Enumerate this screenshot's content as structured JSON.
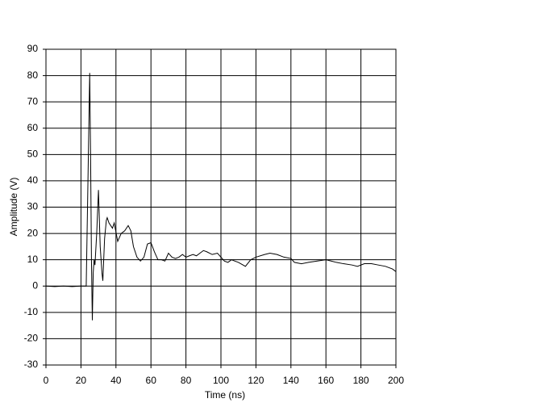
{
  "chart_data": {
    "type": "line",
    "x_label": "Time (ns)",
    "y_label": "Amplitude (V)",
    "x": [
      0,
      5,
      10,
      15,
      20,
      23,
      24,
      25,
      25.5,
      26,
      26.5,
      27,
      27.5,
      28,
      29,
      30,
      31,
      32,
      32.5,
      33.5,
      34.5,
      35,
      36,
      38,
      39,
      41,
      43,
      45,
      47,
      48.5,
      50,
      52,
      54,
      56,
      58,
      60,
      62,
      64,
      66,
      68,
      70,
      72,
      74,
      76,
      78,
      80,
      82,
      84,
      86,
      88,
      90,
      92,
      95,
      98,
      100,
      102,
      104,
      106,
      108,
      110,
      114,
      117,
      120,
      125,
      128,
      132,
      136,
      140,
      142,
      146,
      150,
      155,
      160,
      163,
      166,
      170,
      175,
      178,
      182,
      186,
      190,
      194,
      198,
      200
    ],
    "series": [
      {
        "color": "#000000",
        "values": [
          0,
          -0.2,
          0,
          -0.2,
          0,
          0,
          40,
          81,
          50,
          10,
          -13,
          5,
          10,
          8,
          20,
          36.5,
          15,
          5,
          2,
          18,
          25,
          26,
          24,
          22,
          24,
          17,
          20,
          21,
          23,
          21,
          15,
          11,
          9.5,
          11,
          16,
          16.5,
          13,
          10,
          10,
          9.5,
          12.5,
          11,
          10.5,
          11,
          12,
          11,
          11.5,
          12,
          11.5,
          12.5,
          13.5,
          13,
          12,
          12.5,
          11,
          9.5,
          9,
          10,
          9.5,
          9,
          7.5,
          10,
          11,
          12,
          12.5,
          12,
          11,
          10.5,
          9,
          8.5,
          9,
          9.5,
          10,
          9.5,
          9,
          8.5,
          8,
          7.5,
          8.5,
          8.5,
          8,
          7.5,
          6.5,
          5.5
        ]
      }
    ],
    "xlim": [
      0,
      200
    ],
    "xticks": [
      0,
      20,
      40,
      60,
      80,
      100,
      120,
      140,
      160,
      180,
      200
    ],
    "ylim": [
      -30,
      90
    ],
    "yticks": [
      -30,
      -20,
      -10,
      0,
      10,
      20,
      30,
      40,
      50,
      60,
      70,
      80,
      90
    ],
    "grid": true
  }
}
